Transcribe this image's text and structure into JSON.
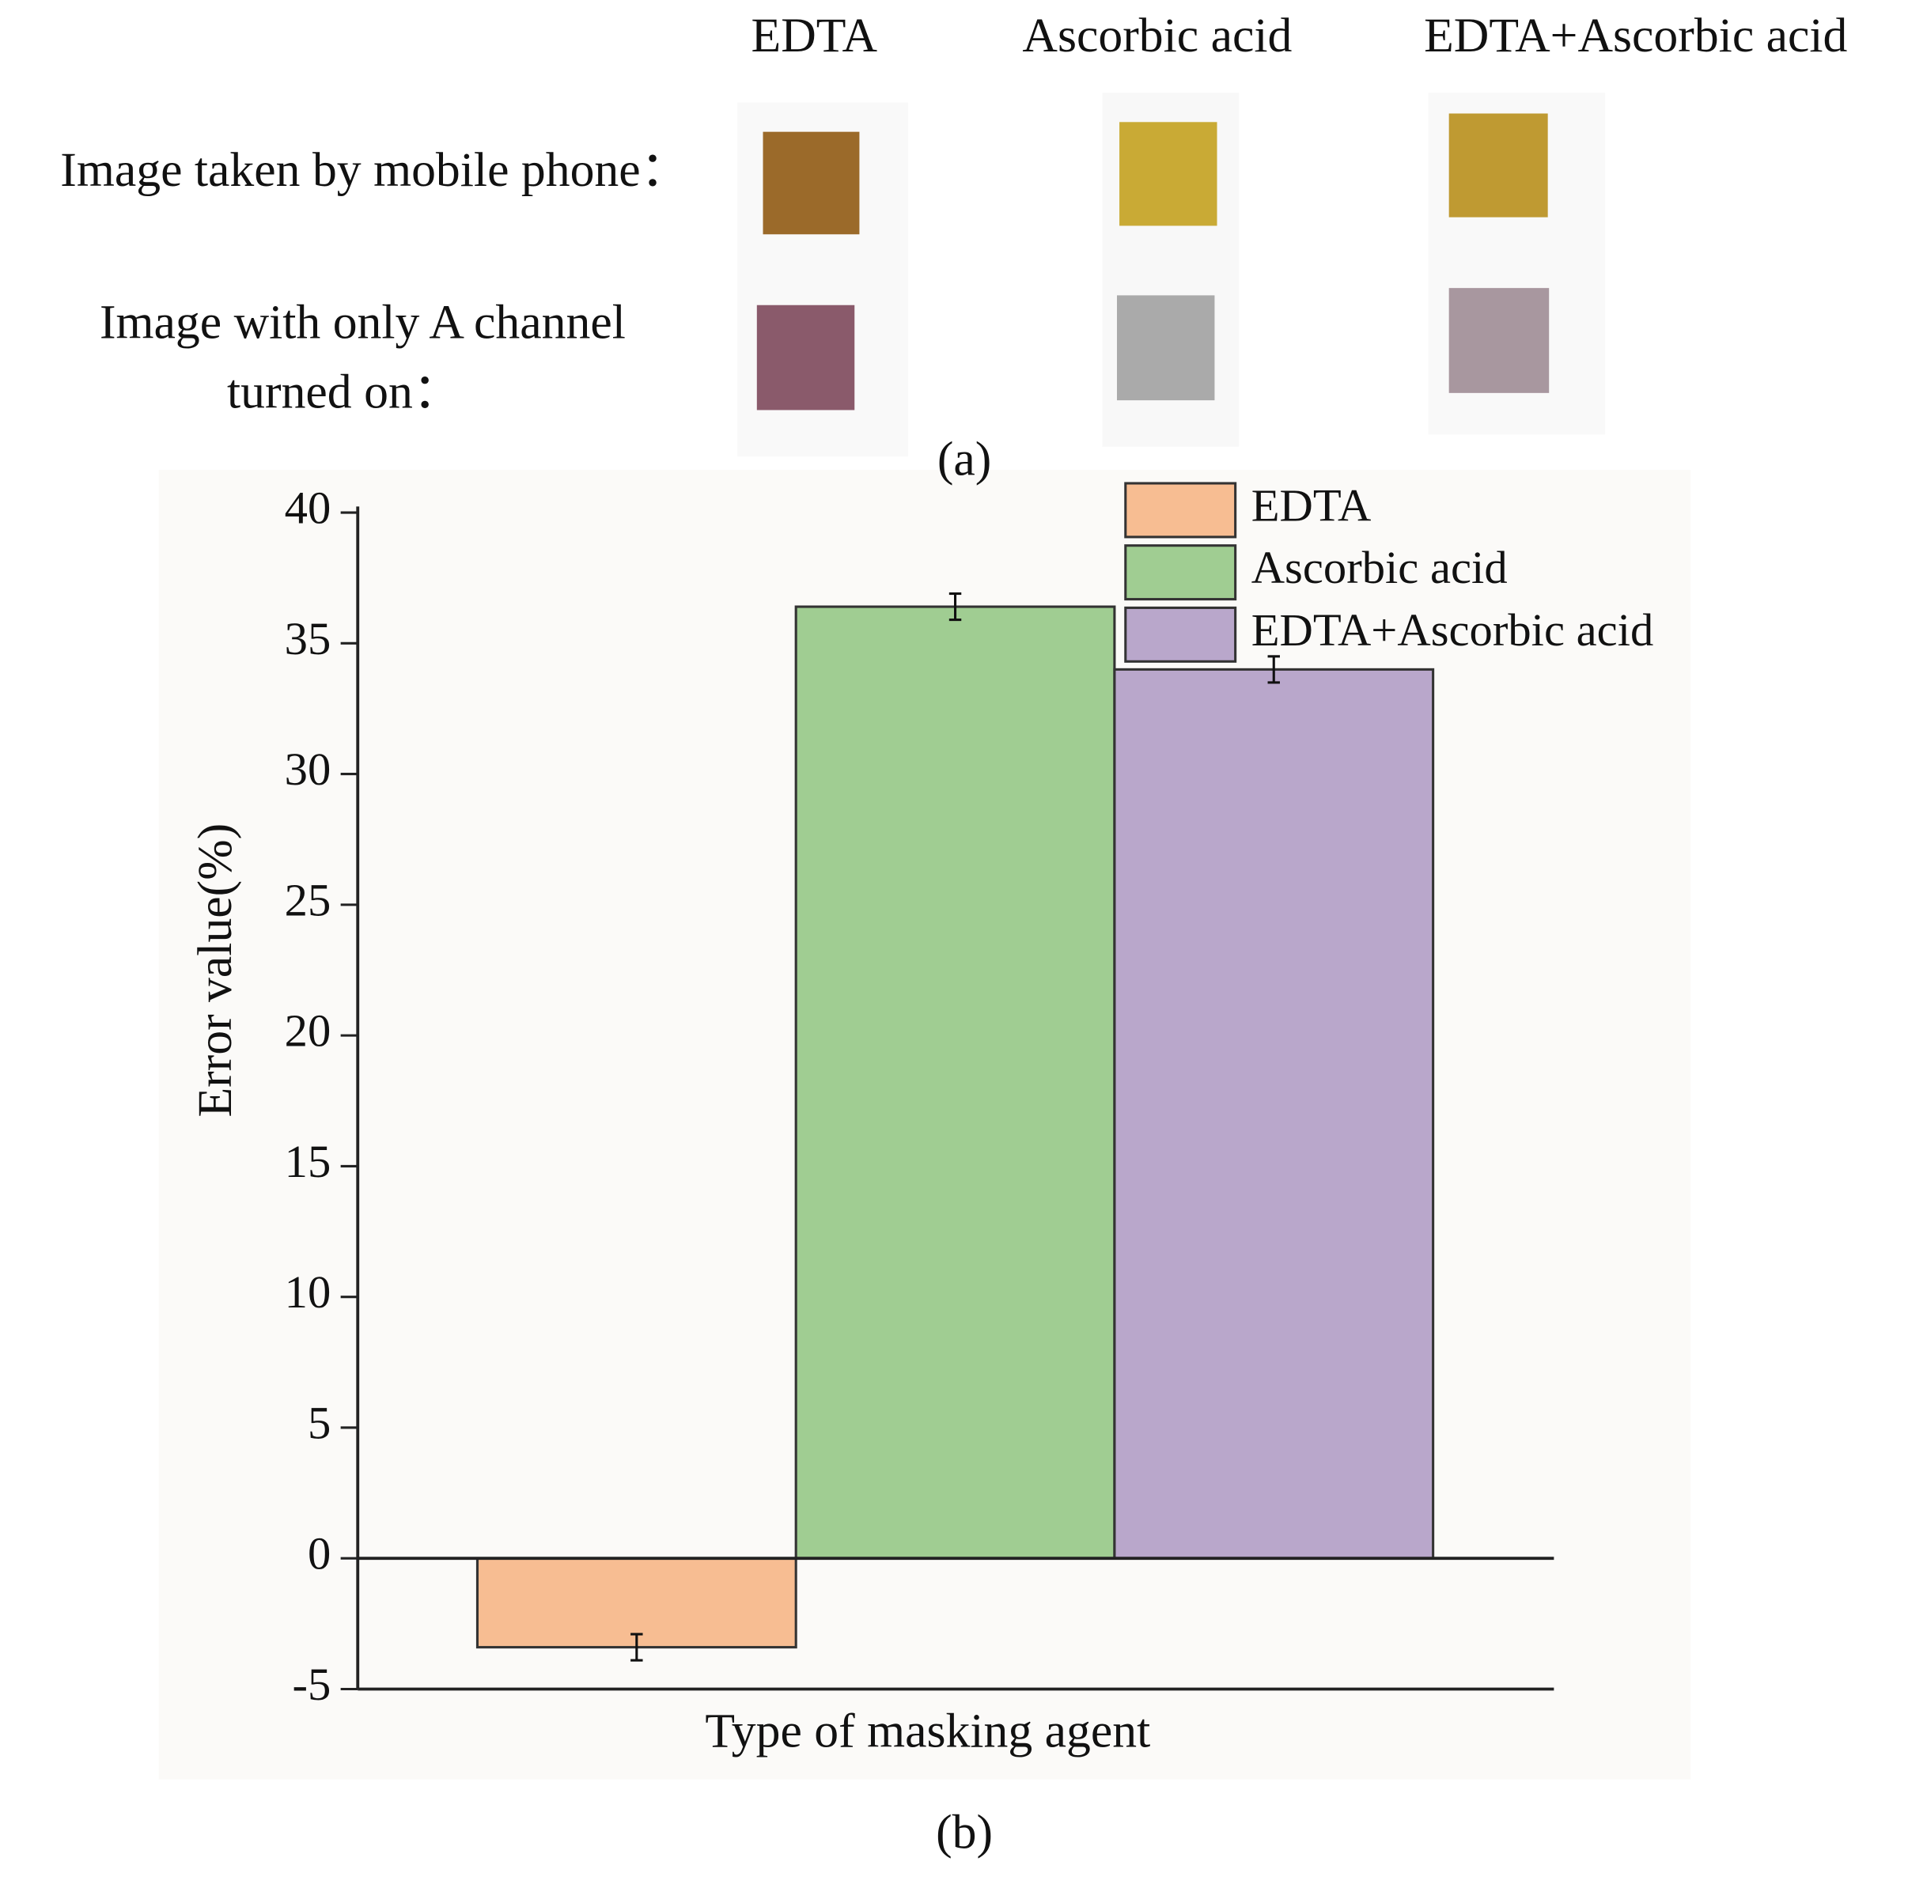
{
  "panel_a": {
    "columns": [
      "EDTA",
      "Ascorbic acid",
      "EDTA+Ascorbic acid"
    ],
    "rows": [
      [
        "Image taken by mobile phone："
      ],
      [
        "Image with only A channel",
        "turned on："
      ]
    ],
    "label": "(a)"
  },
  "chart_data": {
    "type": "bar",
    "x_label": "Type of masking agent",
    "y_label": "Error value(%)",
    "panel_label": "(b)",
    "series": [
      {
        "name": "EDTA",
        "color": "#f7bd92",
        "values": [
          -3.4
        ],
        "errors": [
          0.5
        ]
      },
      {
        "name": "Ascorbic acid",
        "color": "#a0cd92",
        "values": [
          36.4
        ],
        "errors": [
          0.5
        ]
      },
      {
        "name": "EDTA+Ascorbic acid",
        "color": "#b9a7cb",
        "values": [
          34.0
        ],
        "errors": [
          0.5
        ]
      }
    ],
    "ylim": [
      -5,
      40
    ],
    "yticks": [
      -5,
      0,
      5,
      10,
      15,
      20,
      25,
      30,
      35,
      40
    ],
    "legend": "upper right"
  }
}
